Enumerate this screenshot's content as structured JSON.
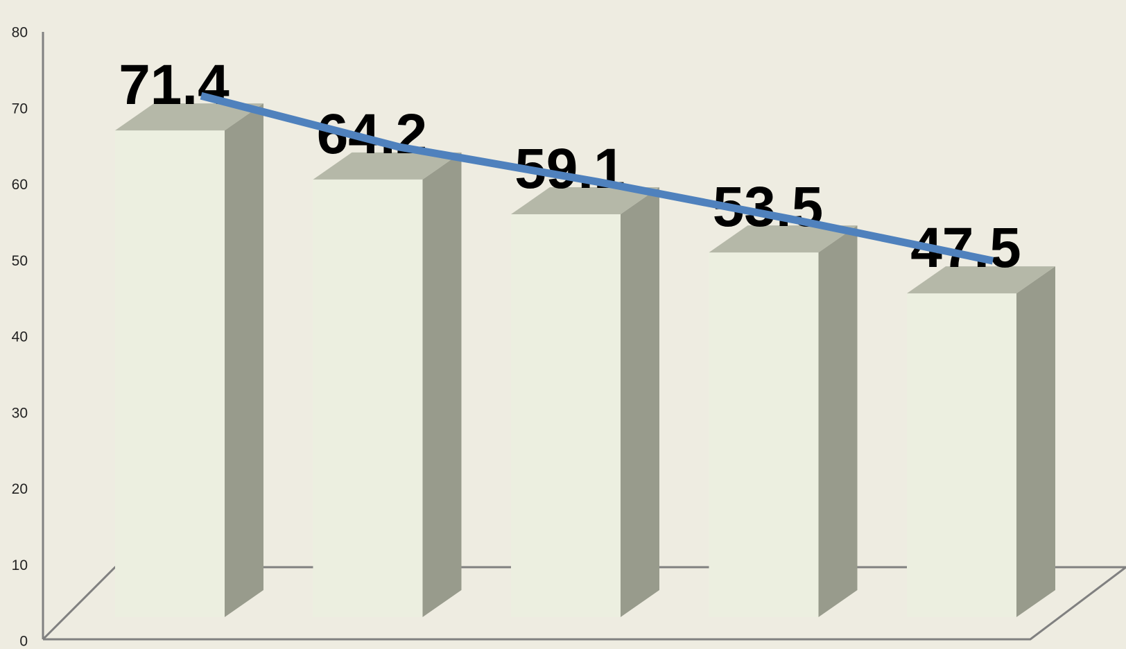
{
  "chart_data": {
    "type": "bar",
    "three_d": true,
    "categories": [
      "",
      "",
      "",
      "",
      ""
    ],
    "values": [
      71.4,
      64.2,
      59.1,
      53.5,
      47.5
    ],
    "data_labels": [
      "71.4",
      "64.2",
      "59.1",
      "53.5",
      "47.5"
    ],
    "trend_line": {
      "values": [
        71.4,
        64.2,
        59.1,
        53.5,
        47.5
      ],
      "color": "#4F81BD"
    },
    "y_ticks": [
      {
        "value": 0,
        "label": "0"
      },
      {
        "value": 10,
        "label": "10"
      },
      {
        "value": 20,
        "label": "20"
      },
      {
        "value": 30,
        "label": "30"
      },
      {
        "value": 40,
        "label": "40"
      },
      {
        "value": 50,
        "label": "50"
      },
      {
        "value": 60,
        "label": "60"
      },
      {
        "value": 70,
        "label": "70"
      },
      {
        "value": 80,
        "label": "80"
      }
    ],
    "ylim": [
      0,
      80
    ],
    "title": "",
    "xlabel": "",
    "ylabel": "",
    "grid": false,
    "legend": "none",
    "colors": {
      "background": "#EEECE1",
      "bar_front": "#ECEFE0",
      "bar_top": "#B5B8A8",
      "bar_side": "#989B8C",
      "axis": "#808080",
      "trend_line": "#4F81BD"
    }
  }
}
